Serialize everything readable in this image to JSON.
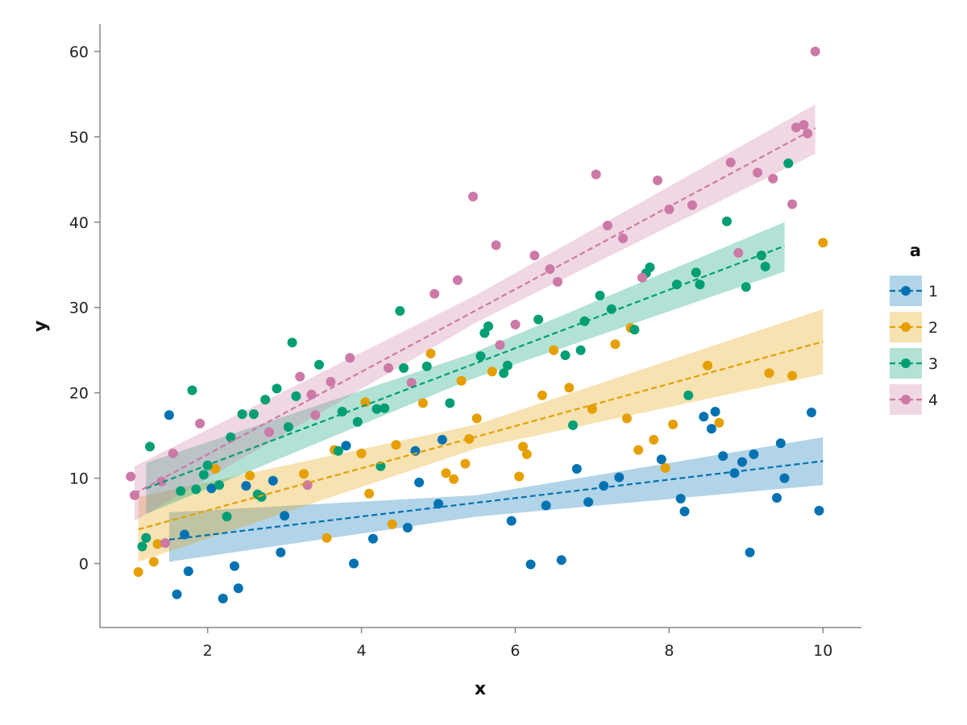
{
  "chart_data": {
    "type": "scatter",
    "title": "",
    "xlabel": "x",
    "ylabel": "y",
    "xlim": [
      0.6,
      10.5
    ],
    "ylim": [
      -7.5,
      63.2
    ],
    "xticks": [
      2,
      4,
      6,
      8,
      10
    ],
    "yticks": [
      0,
      10,
      20,
      30,
      40,
      50,
      60
    ],
    "grid": false,
    "legend": {
      "title": "a",
      "position": "right"
    },
    "series": [
      {
        "name": "1",
        "color": "#0072B2",
        "fit": {
          "x0": 1.5,
          "y0": 2.8,
          "x1": 10.0,
          "y1": 12.0
        },
        "band": [
          {
            "x": 1.5,
            "lo": 0.2,
            "hi": 6.0
          },
          {
            "x": 5.5,
            "lo": 5.5,
            "hi": 8.0
          },
          {
            "x": 10.0,
            "lo": 9.2,
            "hi": 14.8
          }
        ],
        "points": [
          [
            1.5,
            17.4
          ],
          [
            1.6,
            -3.6
          ],
          [
            1.7,
            3.4
          ],
          [
            1.75,
            -0.9
          ],
          [
            2.05,
            8.8
          ],
          [
            2.2,
            -4.1
          ],
          [
            2.35,
            -0.3
          ],
          [
            2.4,
            -2.9
          ],
          [
            2.5,
            9.1
          ],
          [
            2.85,
            9.7
          ],
          [
            2.95,
            1.3
          ],
          [
            3.0,
            5.6
          ],
          [
            3.8,
            13.8
          ],
          [
            3.9,
            0.0
          ],
          [
            4.15,
            2.9
          ],
          [
            4.6,
            4.2
          ],
          [
            4.7,
            13.2
          ],
          [
            4.75,
            9.5
          ],
          [
            5.0,
            7.0
          ],
          [
            5.05,
            14.5
          ],
          [
            5.95,
            5.0
          ],
          [
            6.2,
            -0.1
          ],
          [
            6.4,
            6.8
          ],
          [
            6.6,
            0.4
          ],
          [
            6.8,
            11.1
          ],
          [
            6.95,
            7.2
          ],
          [
            7.15,
            9.1
          ],
          [
            7.35,
            10.1
          ],
          [
            7.9,
            12.2
          ],
          [
            8.15,
            7.6
          ],
          [
            8.2,
            6.1
          ],
          [
            8.45,
            17.2
          ],
          [
            8.55,
            15.8
          ],
          [
            8.6,
            17.8
          ],
          [
            8.7,
            12.6
          ],
          [
            8.85,
            10.6
          ],
          [
            8.95,
            11.9
          ],
          [
            9.05,
            1.3
          ],
          [
            9.1,
            12.8
          ],
          [
            9.4,
            7.7
          ],
          [
            9.45,
            14.1
          ],
          [
            9.5,
            10.0
          ],
          [
            9.85,
            17.7
          ],
          [
            9.95,
            6.2
          ]
        ]
      },
      {
        "name": "2",
        "color": "#E69F00",
        "fit": {
          "x0": 1.1,
          "y0": 4.0,
          "x1": 10.0,
          "y1": 26.0
        },
        "band": [
          {
            "x": 1.1,
            "lo": 0.2,
            "hi": 7.8
          },
          {
            "x": 5.5,
            "lo": 13.5,
            "hi": 16.3
          },
          {
            "x": 10.0,
            "lo": 22.2,
            "hi": 29.8
          }
        ],
        "points": [
          [
            1.1,
            -1.0
          ],
          [
            1.3,
            0.2
          ],
          [
            1.35,
            2.3
          ],
          [
            2.1,
            11.1
          ],
          [
            2.55,
            10.3
          ],
          [
            3.25,
            10.5
          ],
          [
            3.55,
            3.0
          ],
          [
            3.65,
            13.3
          ],
          [
            4.0,
            12.9
          ],
          [
            4.05,
            18.9
          ],
          [
            4.1,
            8.2
          ],
          [
            4.4,
            4.6
          ],
          [
            4.45,
            13.9
          ],
          [
            4.8,
            18.8
          ],
          [
            4.9,
            24.6
          ],
          [
            5.1,
            10.6
          ],
          [
            5.2,
            9.9
          ],
          [
            5.3,
            21.4
          ],
          [
            5.35,
            11.7
          ],
          [
            5.4,
            14.6
          ],
          [
            5.5,
            17.0
          ],
          [
            5.7,
            22.5
          ],
          [
            6.05,
            10.2
          ],
          [
            6.1,
            13.7
          ],
          [
            6.15,
            12.8
          ],
          [
            6.35,
            19.7
          ],
          [
            6.5,
            25.0
          ],
          [
            6.7,
            20.6
          ],
          [
            7.0,
            18.1
          ],
          [
            7.3,
            25.7
          ],
          [
            7.45,
            17.0
          ],
          [
            7.5,
            27.6
          ],
          [
            7.6,
            13.3
          ],
          [
            7.8,
            14.5
          ],
          [
            7.95,
            11.2
          ],
          [
            8.05,
            16.3
          ],
          [
            8.5,
            23.2
          ],
          [
            8.65,
            16.5
          ],
          [
            9.3,
            22.3
          ],
          [
            9.6,
            22.0
          ],
          [
            10.0,
            37.6
          ]
        ]
      },
      {
        "name": "3",
        "color": "#009E73",
        "fit": {
          "x0": 1.2,
          "y0": 8.8,
          "x1": 9.5,
          "y1": 37.2
        },
        "band": [
          {
            "x": 1.2,
            "lo": 5.8,
            "hi": 11.8
          },
          {
            "x": 5.4,
            "lo": 21.5,
            "hi": 24.5
          },
          {
            "x": 9.5,
            "lo": 34.2,
            "hi": 40.0
          }
        ],
        "points": [
          [
            1.15,
            2.0
          ],
          [
            1.2,
            3.0
          ],
          [
            1.25,
            13.7
          ],
          [
            1.65,
            8.5
          ],
          [
            1.8,
            20.3
          ],
          [
            1.85,
            8.7
          ],
          [
            1.95,
            10.4
          ],
          [
            2.0,
            11.5
          ],
          [
            2.15,
            9.2
          ],
          [
            2.25,
            5.5
          ],
          [
            2.3,
            14.8
          ],
          [
            2.45,
            17.5
          ],
          [
            2.6,
            17.5
          ],
          [
            2.65,
            8.1
          ],
          [
            2.7,
            7.8
          ],
          [
            2.75,
            19.2
          ],
          [
            2.9,
            20.5
          ],
          [
            3.05,
            16.0
          ],
          [
            3.1,
            25.9
          ],
          [
            3.15,
            19.6
          ],
          [
            3.45,
            23.3
          ],
          [
            3.7,
            13.2
          ],
          [
            3.75,
            17.8
          ],
          [
            3.95,
            16.6
          ],
          [
            4.2,
            18.1
          ],
          [
            4.25,
            11.4
          ],
          [
            4.3,
            18.2
          ],
          [
            4.5,
            29.6
          ],
          [
            4.55,
            22.9
          ],
          [
            4.85,
            23.1
          ],
          [
            5.15,
            18.8
          ],
          [
            5.55,
            24.3
          ],
          [
            5.6,
            27.0
          ],
          [
            5.65,
            27.8
          ],
          [
            5.85,
            22.3
          ],
          [
            5.9,
            23.2
          ],
          [
            6.3,
            28.6
          ],
          [
            6.65,
            24.4
          ],
          [
            6.75,
            16.2
          ],
          [
            6.85,
            25.0
          ],
          [
            6.9,
            28.4
          ],
          [
            7.1,
            31.4
          ],
          [
            7.25,
            29.8
          ],
          [
            7.55,
            27.4
          ],
          [
            7.7,
            34.0
          ],
          [
            7.75,
            34.7
          ],
          [
            8.1,
            32.7
          ],
          [
            8.25,
            19.7
          ],
          [
            8.35,
            34.1
          ],
          [
            8.4,
            32.7
          ],
          [
            8.75,
            40.1
          ],
          [
            9.0,
            32.4
          ],
          [
            9.2,
            36.1
          ],
          [
            9.25,
            34.8
          ],
          [
            9.55,
            46.9
          ]
        ]
      },
      {
        "name": "4",
        "color": "#CC79A7",
        "fit": {
          "x0": 1.05,
          "y0": 8.2,
          "x1": 9.9,
          "y1": 51.0
        },
        "band": [
          {
            "x": 1.05,
            "lo": 5.0,
            "hi": 11.4
          },
          {
            "x": 5.5,
            "lo": 28.3,
            "hi": 31.5
          },
          {
            "x": 9.9,
            "lo": 48.0,
            "hi": 53.8
          }
        ],
        "points": [
          [
            1.0,
            10.2
          ],
          [
            1.05,
            8.0
          ],
          [
            1.4,
            9.6
          ],
          [
            1.45,
            2.4
          ],
          [
            1.55,
            12.9
          ],
          [
            1.9,
            16.4
          ],
          [
            2.8,
            15.4
          ],
          [
            3.2,
            21.9
          ],
          [
            3.3,
            9.2
          ],
          [
            3.35,
            19.8
          ],
          [
            3.4,
            17.4
          ],
          [
            3.6,
            21.3
          ],
          [
            3.85,
            24.1
          ],
          [
            4.35,
            22.9
          ],
          [
            4.65,
            21.2
          ],
          [
            4.95,
            31.6
          ],
          [
            5.25,
            33.2
          ],
          [
            5.45,
            43.0
          ],
          [
            5.75,
            37.3
          ],
          [
            5.8,
            25.6
          ],
          [
            6.0,
            28.0
          ],
          [
            6.25,
            36.1
          ],
          [
            6.45,
            34.5
          ],
          [
            6.55,
            33.0
          ],
          [
            7.05,
            45.6
          ],
          [
            7.2,
            39.6
          ],
          [
            7.4,
            38.1
          ],
          [
            7.65,
            33.5
          ],
          [
            7.85,
            44.9
          ],
          [
            8.0,
            41.5
          ],
          [
            8.3,
            42.0
          ],
          [
            8.8,
            47.0
          ],
          [
            8.9,
            36.4
          ],
          [
            9.15,
            45.8
          ],
          [
            9.35,
            45.1
          ],
          [
            9.6,
            42.1
          ],
          [
            9.65,
            51.1
          ],
          [
            9.75,
            51.4
          ],
          [
            9.8,
            50.4
          ],
          [
            9.9,
            60.0
          ]
        ]
      }
    ]
  }
}
